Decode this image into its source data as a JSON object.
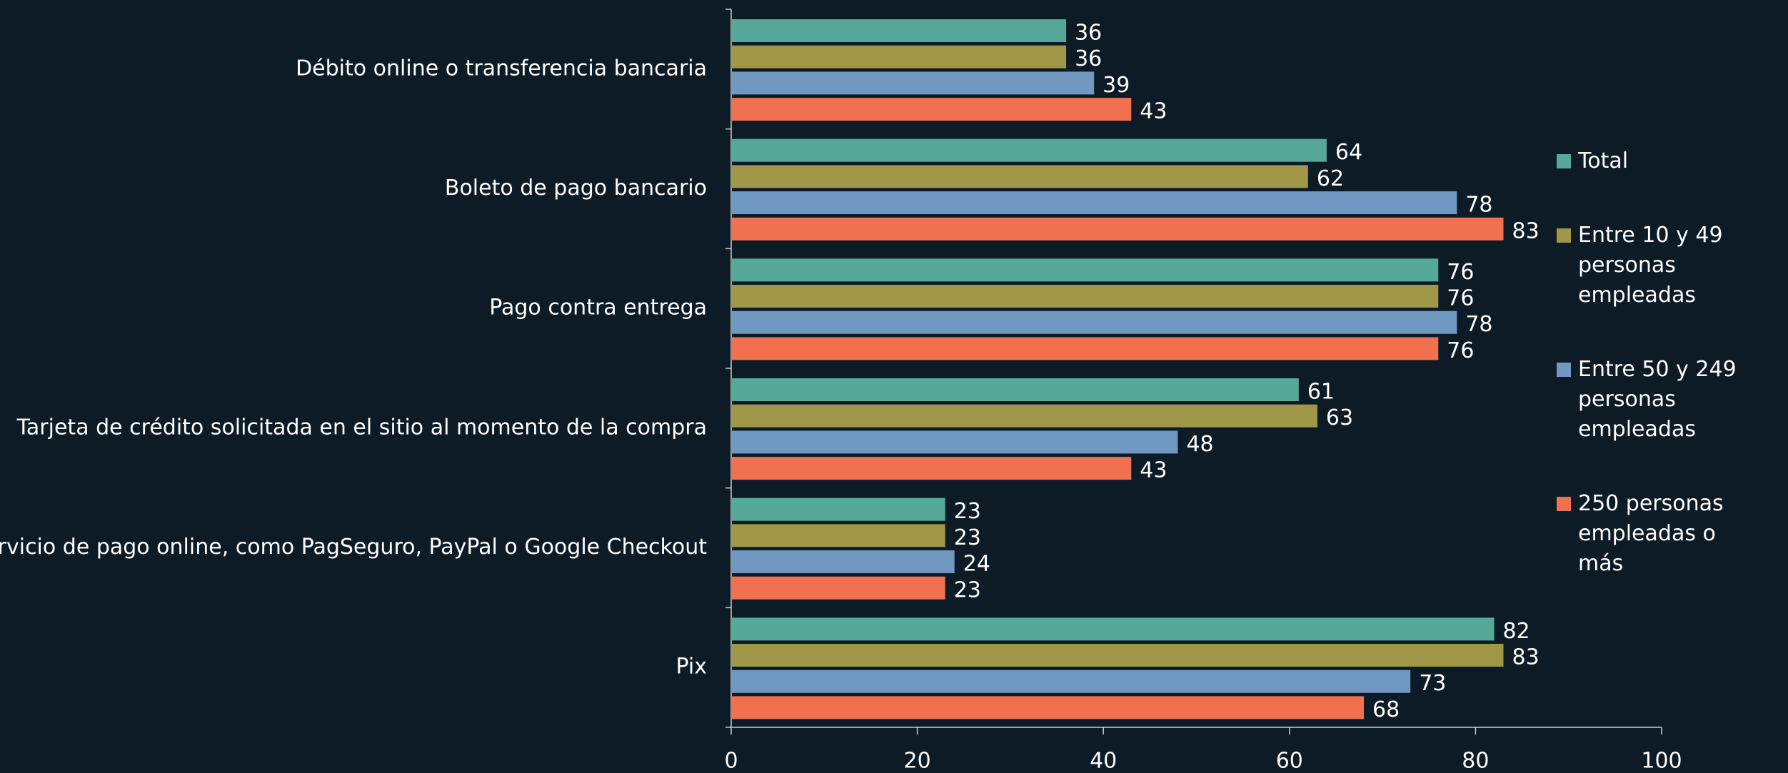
{
  "chart_data": {
    "type": "hbar",
    "categories": [
      "Débito online o transferencia bancaria",
      "Boleto de pago bancario",
      "Pago contra entrega",
      "Tarjeta de crédito solicitada en el sitio al momento de la compra",
      "Servicio de pago online, como PagSeguro, PayPal o Google Checkout",
      "Pix"
    ],
    "series": [
      {
        "name": "Total",
        "color": "#56a898",
        "values": [
          36,
          64,
          76,
          61,
          23,
          82
        ]
      },
      {
        "name": "Entre 10 y 49 personas empleadas",
        "color": "#a09848",
        "values": [
          36,
          62,
          76,
          63,
          23,
          83
        ]
      },
      {
        "name": "Entre 50 y 249 personas empleadas",
        "color": "#7098c0",
        "values": [
          39,
          78,
          78,
          48,
          24,
          73
        ]
      },
      {
        "name": "250 personas empleadas o más",
        "color": "#f07050",
        "values": [
          43,
          83,
          76,
          43,
          23,
          68
        ]
      }
    ],
    "xlim": [
      0,
      100
    ],
    "xticks": [
      0,
      20,
      40,
      60,
      80,
      100
    ],
    "legend": "right"
  }
}
